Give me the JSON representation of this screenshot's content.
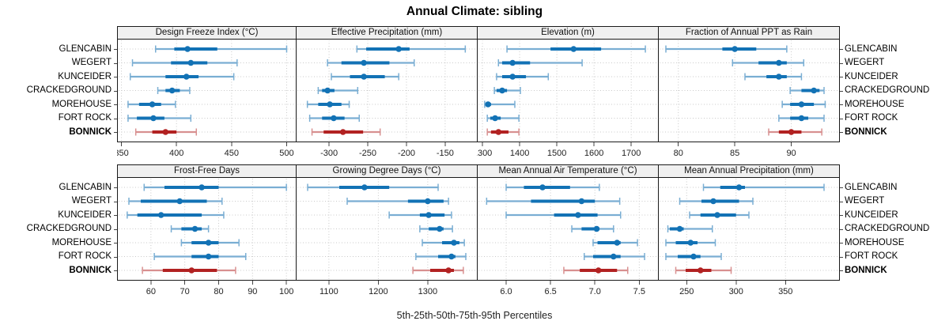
{
  "title": "Annual Climate: sibling",
  "caption": "5th-25th-50th-75th-95th Percentiles",
  "sites": [
    "GLENCABIN",
    "WEGERT",
    "KUNCEIDER",
    "CRACKEDGROUND",
    "MOREHOUSE",
    "FORT ROCK",
    "BONNICK"
  ],
  "highlight_site": "BONNICK",
  "colors": {
    "series": "#1272b5",
    "series_light": "#7aaed3",
    "highlight": "#b22222",
    "highlight_light": "#d89090",
    "header_bg": "#f0f0f0",
    "panel_border": "#1a1a1a",
    "grid": "#c9c9c9",
    "tick": "#444444",
    "text": "#000000"
  },
  "chart_data": {
    "type": "dotplot-grid",
    "subtype": "percentile intervals (5th-25th-50th-75th-95th) per site, 2x4 trellis",
    "legend_position": "none",
    "grid": "dotted",
    "statistic_order": [
      "p5",
      "p25",
      "p50",
      "p75",
      "p95"
    ],
    "panels": [
      {
        "title": "Design Freeze Index (°C)",
        "xlim": [
          346,
          509
        ],
        "ticks": [
          350,
          400,
          450,
          500
        ],
        "tick_labels": [
          "350",
          "400",
          "450",
          "500"
        ],
        "values": [
          [
            381,
            398,
            410,
            437,
            500
          ],
          [
            360,
            395,
            413,
            428,
            455
          ],
          [
            358,
            390,
            409,
            420,
            452
          ],
          [
            383,
            390,
            396,
            403,
            412
          ],
          [
            356,
            366,
            378,
            386,
            399
          ],
          [
            356,
            364,
            379,
            389,
            413
          ],
          [
            363,
            378,
            390,
            400,
            418
          ]
        ]
      },
      {
        "title": "Effective Precipitation (mm)",
        "xlim": [
          -343,
          -108
        ],
        "ticks": [
          -300,
          -250,
          -200,
          -150
        ],
        "tick_labels": [
          "-300",
          "-250",
          "-200",
          "-150"
        ],
        "values": [
          [
            -264,
            -252,
            -210,
            -196,
            -124
          ],
          [
            -302,
            -284,
            -255,
            -222,
            -190
          ],
          [
            -297,
            -273,
            -255,
            -228,
            -210
          ],
          [
            -314,
            -309,
            -302,
            -293,
            -263
          ],
          [
            -328,
            -314,
            -299,
            -284,
            -274
          ],
          [
            -325,
            -309,
            -294,
            -280,
            -261
          ],
          [
            -322,
            -307,
            -282,
            -256,
            -234
          ]
        ]
      },
      {
        "title": "Elevation (m)",
        "xlim": [
          1285,
          1774
        ],
        "ticks": [
          1300,
          1400,
          1500,
          1600,
          1700
        ],
        "tick_labels": [
          "1300",
          "1400",
          "1500",
          "1600",
          "1700"
        ],
        "values": [
          [
            1366,
            1483,
            1545,
            1619,
            1738
          ],
          [
            1343,
            1353,
            1381,
            1428,
            1568
          ],
          [
            1338,
            1353,
            1381,
            1417,
            1477
          ],
          [
            1332,
            1338,
            1353,
            1366,
            1402
          ],
          [
            1306,
            1309,
            1315,
            1323,
            1387
          ],
          [
            1313,
            1321,
            1334,
            1349,
            1398
          ],
          [
            1313,
            1323,
            1343,
            1370,
            1398
          ]
        ]
      },
      {
        "title": "Fraction of Annual PPT as Rain",
        "xlim": [
          78.2,
          94.3
        ],
        "ticks": [
          80,
          85,
          90
        ],
        "tick_labels": [
          "80",
          "85",
          "90"
        ],
        "values": [
          [
            78.9,
            83.9,
            85.0,
            86.9,
            89.6
          ],
          [
            84.8,
            87.1,
            88.9,
            89.6,
            91.1
          ],
          [
            85.9,
            87.8,
            88.9,
            89.6,
            90.9
          ],
          [
            89.9,
            90.9,
            92.0,
            92.5,
            92.9
          ],
          [
            89.2,
            89.9,
            90.9,
            92.0,
            93.0
          ],
          [
            88.9,
            89.9,
            90.9,
            91.5,
            92.9
          ],
          [
            88.0,
            88.9,
            90.0,
            90.9,
            92.7
          ]
        ]
      },
      {
        "title": "Frost-Free Days",
        "xlim": [
          50,
          103
        ],
        "ticks": [
          60,
          70,
          80,
          90,
          100
        ],
        "tick_labels": [
          "60",
          "70",
          "80",
          "90",
          "100"
        ],
        "values": [
          [
            58,
            64,
            75,
            80,
            100
          ],
          [
            53.5,
            57,
            68.5,
            76.5,
            81
          ],
          [
            53,
            56,
            63,
            75,
            81.5
          ],
          [
            66,
            69,
            73,
            75,
            77
          ],
          [
            69,
            72,
            77,
            80,
            86
          ],
          [
            61,
            72,
            77,
            80,
            88
          ],
          [
            57.5,
            63.5,
            72,
            79.5,
            85
          ]
        ]
      },
      {
        "title": "Growing Degree Days (°C)",
        "xlim": [
          1033,
          1401
        ],
        "ticks": [
          1100,
          1200,
          1300
        ],
        "tick_labels": [
          "1100",
          "1200",
          "1300"
        ],
        "values": [
          [
            1057,
            1121,
            1172,
            1222,
            1321
          ],
          [
            1137,
            1260,
            1300,
            1332,
            1342
          ],
          [
            1222,
            1284,
            1302,
            1334,
            1348
          ],
          [
            1284,
            1302,
            1324,
            1332,
            1350
          ],
          [
            1289,
            1329,
            1353,
            1364,
            1374
          ],
          [
            1276,
            1321,
            1348,
            1356,
            1377
          ],
          [
            1270,
            1305,
            1342,
            1353,
            1372
          ]
        ]
      },
      {
        "title": "Mean Annual Air Temperature (°C)",
        "xlim": [
          5.67,
          7.72
        ],
        "ticks": [
          6.0,
          6.5,
          7.0,
          7.5
        ],
        "tick_labels": [
          "6.0",
          "6.5",
          "7.0",
          "7.5"
        ],
        "values": [
          [
            6.0,
            6.2,
            6.41,
            6.72,
            7.05
          ],
          [
            5.78,
            6.28,
            6.85,
            7.0,
            7.28
          ],
          [
            6.0,
            6.54,
            6.81,
            7.03,
            7.29
          ],
          [
            6.74,
            6.85,
            7.02,
            7.05,
            7.21
          ],
          [
            6.98,
            7.03,
            7.25,
            7.29,
            7.48
          ],
          [
            6.88,
            6.98,
            7.21,
            7.29,
            7.56
          ],
          [
            6.65,
            6.83,
            7.04,
            7.25,
            7.37
          ]
        ]
      },
      {
        "title": "Mean Annual Precipitation (mm)",
        "xlim": [
          221,
          405
        ],
        "ticks": [
          250,
          300,
          350
        ],
        "tick_labels": [
          "250",
          "300",
          "350"
        ],
        "values": [
          [
            267,
            284,
            303,
            309,
            389
          ],
          [
            243,
            265,
            277,
            303,
            317
          ],
          [
            253,
            264,
            281,
            300,
            313
          ],
          [
            231,
            233,
            243,
            247,
            276
          ],
          [
            229,
            239,
            254,
            261,
            279
          ],
          [
            229,
            241,
            257,
            264,
            285
          ],
          [
            239,
            249,
            264,
            275,
            295
          ]
        ]
      }
    ]
  }
}
